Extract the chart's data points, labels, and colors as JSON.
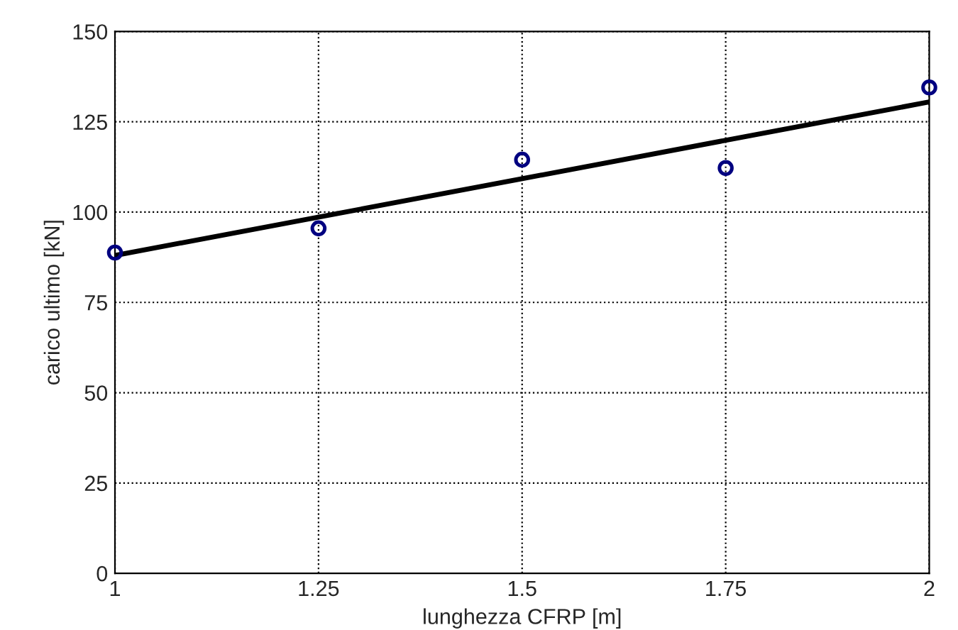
{
  "chart_data": {
    "type": "scatter",
    "xlabel": "lunghezza CFRP [m]",
    "ylabel": "carico ultimo [kN]",
    "xlim": [
      1,
      2
    ],
    "xticks": [
      1,
      1.25,
      1.5,
      1.75,
      2
    ],
    "ylim": [
      0,
      150
    ],
    "yticks": [
      0,
      25,
      50,
      75,
      100,
      125,
      150
    ],
    "grid": true,
    "series": [
      {
        "color": "#000080",
        "marker": "circle",
        "x": [
          1,
          1.25,
          1.5,
          1.75,
          2
        ],
        "values": [
          88.8,
          95.5,
          114.5,
          112.2,
          134.5
        ]
      },
      {
        "type": "line",
        "color": "#000000",
        "marker": "none",
        "line_style": "solid",
        "x": [
          1,
          2
        ],
        "values": [
          88,
          130.5
        ]
      }
    ]
  }
}
